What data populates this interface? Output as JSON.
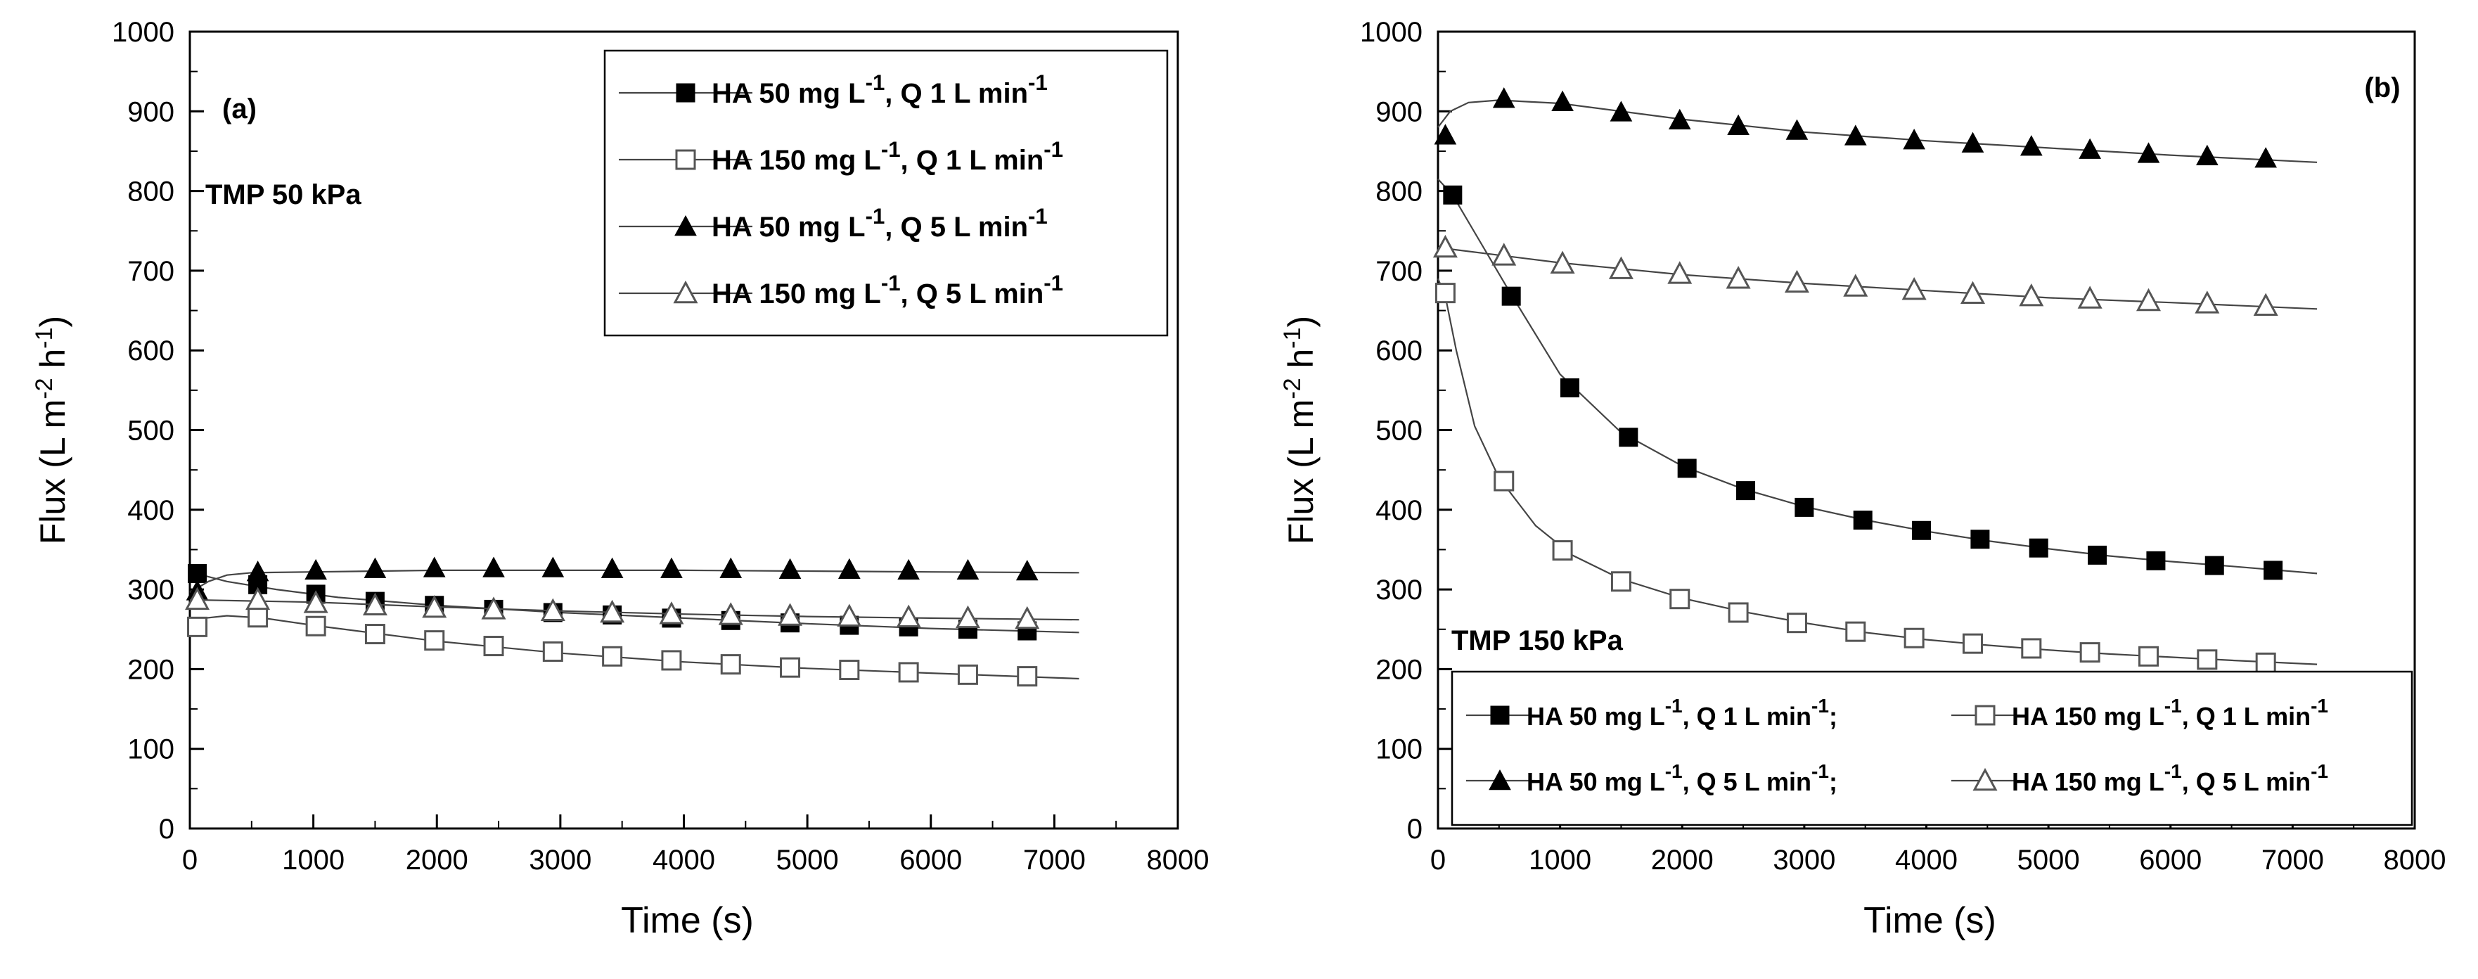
{
  "chart_data": [
    {
      "type": "line",
      "panel_label": "(a)",
      "annotation": "TMP 50 kPa",
      "xlabel": "Time (s)",
      "ylabel_prefix": "Flux (L m",
      "ylabel_sup1": "-2",
      "ylabel_mid": " h",
      "ylabel_sup2": "-1",
      "ylabel_suffix": ")",
      "xlim": [
        0,
        8000
      ],
      "ylim": [
        0,
        1000
      ],
      "x_ticks": [
        0,
        1000,
        2000,
        3000,
        4000,
        5000,
        6000,
        7000,
        8000
      ],
      "x_tick_labels": [
        "0",
        "1000",
        "2000",
        "3000",
        "4000",
        "5000",
        "6000",
        "7000",
        "8000"
      ],
      "y_ticks": [
        0,
        100,
        200,
        300,
        400,
        500,
        600,
        700,
        800,
        900,
        1000
      ],
      "y_tick_labels": [
        "0",
        "100",
        "200",
        "300",
        "400",
        "500",
        "600",
        "700",
        "800",
        "900",
        "1000"
      ],
      "legend": {
        "layout": "single-column",
        "position": "top-right",
        "entries": [
          {
            "marker": "square-filled",
            "parts": [
              [
                "HA 50 mg L",
                false
              ],
              [
                "-1",
                true
              ],
              [
                ",  Q 1 L min",
                false
              ],
              [
                "-1",
                true
              ]
            ]
          },
          {
            "marker": "square-open",
            "parts": [
              [
                "HA 150 mg L",
                false
              ],
              [
                "-1",
                true
              ],
              [
                ",  Q 1 L min",
                false
              ],
              [
                "-1",
                true
              ]
            ]
          },
          {
            "marker": "triangle-filled",
            "parts": [
              [
                "HA 50 mg L",
                false
              ],
              [
                "-1",
                true
              ],
              [
                ",  Q 5 L min",
                false
              ],
              [
                "-1",
                true
              ]
            ]
          },
          {
            "marker": "triangle-open",
            "parts": [
              [
                "HA 150 mg L",
                false
              ],
              [
                "-1",
                true
              ],
              [
                ",  Q 5 L min",
                false
              ],
              [
                "-1",
                true
              ]
            ]
          }
        ]
      },
      "series": [
        {
          "name": "HA 50 mg L-1, Q 1 L min-1",
          "marker": "square-filled",
          "x": [
            60,
            550,
            1020,
            1500,
            1980,
            2460,
            2940,
            3420,
            3900,
            4380,
            4860,
            5340,
            5820,
            6300,
            6780
          ],
          "y": [
            320,
            306,
            294,
            285,
            280,
            275,
            271,
            268,
            264,
            261,
            258,
            255,
            253,
            250,
            248
          ],
          "curve_x": [
            0,
            300,
            700,
            1200,
            2000,
            3000,
            4000,
            5000,
            6000,
            7200
          ],
          "curve_y": [
            322,
            310,
            300,
            290,
            280,
            271,
            264,
            257,
            251,
            246
          ]
        },
        {
          "name": "HA 150 mg L-1, Q 1 L min-1",
          "marker": "square-open",
          "x": [
            60,
            550,
            1020,
            1500,
            1980,
            2460,
            2940,
            3420,
            3900,
            4380,
            4860,
            5340,
            5820,
            6300,
            6780
          ],
          "y": [
            253,
            265,
            254,
            244,
            236,
            229,
            222,
            216,
            211,
            206,
            202,
            199,
            196,
            193,
            191
          ],
          "curve_x": [
            0,
            300,
            600,
            1000,
            2000,
            3000,
            4000,
            5000,
            6000,
            7200
          ],
          "curve_y": [
            262,
            267,
            264,
            255,
            235,
            220,
            209,
            201,
            195,
            188
          ]
        },
        {
          "name": "HA 50 mg L-1, Q 5 L min-1",
          "marker": "triangle-filled",
          "x": [
            60,
            550,
            1020,
            1500,
            1980,
            2460,
            2940,
            3420,
            3900,
            4380,
            4860,
            5340,
            5820,
            6300,
            6780
          ],
          "y": [
            298,
            322,
            324,
            326,
            327,
            327,
            327,
            326,
            326,
            326,
            325,
            325,
            324,
            324,
            323
          ],
          "curve_x": [
            0,
            150,
            300,
            500,
            1000,
            2000,
            3000,
            4000,
            5000,
            6000,
            7200
          ],
          "curve_y": [
            296,
            310,
            318,
            321,
            322,
            324,
            324,
            324,
            323,
            322,
            321
          ]
        },
        {
          "name": "HA 150 mg L-1, Q 5 L min-1",
          "marker": "triangle-open",
          "x": [
            60,
            550,
            1020,
            1500,
            1980,
            2460,
            2940,
            3420,
            3900,
            4380,
            4860,
            5340,
            5820,
            6300,
            6780
          ],
          "y": [
            287,
            287,
            283,
            280,
            277,
            275,
            273,
            271,
            269,
            268,
            267,
            266,
            265,
            264,
            263
          ],
          "curve_x": [
            0,
            1000,
            2000,
            3000,
            4000,
            5000,
            6000,
            7200
          ],
          "curve_y": [
            287,
            284,
            278,
            273,
            269,
            266,
            264,
            262
          ]
        }
      ]
    },
    {
      "type": "line",
      "panel_label": "(b)",
      "annotation": "TMP 150 kPa",
      "xlabel": "Time (s)",
      "ylabel_prefix": "Flux (L m",
      "ylabel_sup1": "-2",
      "ylabel_mid": " h",
      "ylabel_sup2": "-1",
      "ylabel_suffix": ")",
      "xlim": [
        0,
        8000
      ],
      "ylim": [
        0,
        1000
      ],
      "x_ticks": [
        0,
        1000,
        2000,
        3000,
        4000,
        5000,
        6000,
        7000,
        8000
      ],
      "x_tick_labels": [
        "0",
        "1000",
        "2000",
        "3000",
        "4000",
        "5000",
        "6000",
        "7000",
        "8000"
      ],
      "y_ticks": [
        0,
        100,
        200,
        300,
        400,
        500,
        600,
        700,
        800,
        900,
        1000
      ],
      "y_tick_labels": [
        "0",
        "100",
        "200",
        "300",
        "400",
        "500",
        "600",
        "700",
        "800",
        "900",
        "1000"
      ],
      "legend": {
        "layout": "two-column",
        "position": "bottom",
        "entries": [
          {
            "marker": "square-filled",
            "parts": [
              [
                "HA 50 mg L",
                false
              ],
              [
                "-1",
                true
              ],
              [
                ", Q 1 L min",
                false
              ],
              [
                "-1",
                true
              ],
              [
                ";",
                false
              ]
            ]
          },
          {
            "marker": "square-open",
            "parts": [
              [
                "HA 150 mg L",
                false
              ],
              [
                "-1",
                true
              ],
              [
                ", Q 1 L min",
                false
              ],
              [
                "-1",
                true
              ]
            ]
          },
          {
            "marker": "triangle-filled",
            "parts": [
              [
                "HA 50 mg L",
                false
              ],
              [
                "-1",
                true
              ],
              [
                ", Q 5 L min",
                false
              ],
              [
                "-1",
                true
              ],
              [
                ";",
                false
              ]
            ]
          },
          {
            "marker": "triangle-open",
            "parts": [
              [
                "HA 150 mg L",
                false
              ],
              [
                "-1",
                true
              ],
              [
                ", Q 5 L min",
                false
              ],
              [
                "-1",
                true
              ]
            ]
          }
        ]
      },
      "series": [
        {
          "name": "HA 50 mg L-1, Q 1 L min-1",
          "marker": "square-filled",
          "x": [
            120,
            600,
            1080,
            1560,
            2040,
            2520,
            3000,
            3480,
            3960,
            4440,
            4920,
            5400,
            5880,
            6360,
            6840
          ],
          "y": [
            795,
            668,
            553,
            491,
            452,
            424,
            403,
            387,
            374,
            363,
            352,
            343,
            336,
            330,
            324
          ],
          "curve_x": [
            0,
            120,
            300,
            600,
            1000,
            1500,
            2000,
            2500,
            3000,
            3500,
            4000,
            4500,
            5000,
            5500,
            6000,
            6500,
            7200
          ],
          "curve_y": [
            815,
            795,
            748,
            670,
            570,
            497,
            455,
            426,
            404,
            387,
            373,
            361,
            351,
            342,
            335,
            329,
            320
          ]
        },
        {
          "name": "HA 150 mg L-1, Q 1 L min-1",
          "marker": "square-open",
          "x": [
            60,
            540,
            1020,
            1500,
            1980,
            2460,
            2940,
            3420,
            3900,
            4380,
            4860,
            5340,
            5820,
            6300,
            6780
          ],
          "y": [
            672,
            436,
            349,
            310,
            288,
            271,
            258,
            247,
            239,
            232,
            226,
            221,
            216,
            212,
            208
          ],
          "curve_x": [
            0,
            60,
            150,
            300,
            500,
            800,
            1100,
            1500,
            2000,
            2500,
            3000,
            3500,
            4000,
            4500,
            5000,
            5500,
            6000,
            6500,
            7200
          ],
          "curve_y": [
            690,
            668,
            600,
            505,
            440,
            380,
            343,
            313,
            289,
            272,
            258,
            246,
            237,
            230,
            224,
            219,
            215,
            211,
            206
          ]
        },
        {
          "name": "HA 50 mg L-1, Q 5 L min-1",
          "marker": "triangle-filled",
          "x": [
            60,
            540,
            1020,
            1500,
            1980,
            2460,
            2940,
            3420,
            3900,
            4380,
            4860,
            5340,
            5820,
            6300,
            6780
          ],
          "y": [
            870,
            916,
            912,
            899,
            889,
            882,
            876,
            869,
            864,
            860,
            856,
            852,
            847,
            844,
            841
          ],
          "curve_x": [
            0,
            100,
            250,
            500,
            1000,
            2000,
            3000,
            4000,
            5000,
            6000,
            7200
          ],
          "curve_y": [
            880,
            900,
            911,
            914,
            910,
            890,
            874,
            863,
            854,
            845,
            836
          ]
        },
        {
          "name": "HA 150 mg L-1, Q 5 L min-1",
          "marker": "triangle-open",
          "x": [
            60,
            540,
            1020,
            1500,
            1980,
            2460,
            2940,
            3420,
            3900,
            4380,
            4860,
            5340,
            5820,
            6300,
            6780
          ],
          "y": [
            729,
            719,
            709,
            702,
            696,
            690,
            685,
            680,
            676,
            671,
            668,
            665,
            662,
            659,
            656
          ],
          "curve_x": [
            0,
            1000,
            2000,
            3000,
            4000,
            5000,
            6000,
            7200
          ],
          "curve_y": [
            729,
            710,
            695,
            684,
            675,
            666,
            660,
            652
          ]
        }
      ]
    }
  ]
}
